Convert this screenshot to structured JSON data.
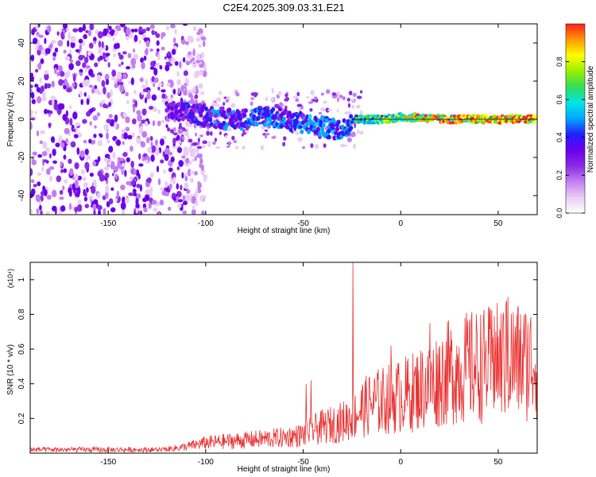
{
  "title": "C2E4.2025.309.03.31.E21",
  "colors": {
    "snr_line": "#e83030",
    "colormap": [
      "#ffffff",
      "#e9cdf6",
      "#c27ef0",
      "#8a2be2",
      "#6a00ee",
      "#2020ff",
      "#00a8ff",
      "#00e5e5",
      "#33dd55",
      "#99ee00",
      "#ffff00",
      "#ff9900",
      "#ff2020"
    ]
  },
  "chart_data": [
    {
      "type": "heatmap",
      "name": "spectrogram",
      "xlabel": "Height of straight line (km)",
      "ylabel": "Frequency (Hz)",
      "xlim": [
        -190,
        70
      ],
      "ylim": [
        -50,
        50
      ],
      "xticks": [
        -150,
        -100,
        -50,
        0,
        50
      ],
      "yticks": [
        -40,
        -20,
        0,
        20,
        40
      ],
      "xtick_labels": [
        "-150",
        "-100",
        "-50",
        "0",
        "50"
      ],
      "ytick_labels": [
        "-40",
        "-20",
        "0",
        "20",
        "40"
      ],
      "noise_region_km": [
        -190,
        -110
      ],
      "signal_track": [
        {
          "x": -120,
          "y": 4,
          "amp": 0.3
        },
        {
          "x": -110,
          "y": 3,
          "amp": 0.35
        },
        {
          "x": -100,
          "y": 2,
          "amp": 0.4
        },
        {
          "x": -90,
          "y": 0,
          "amp": 0.4
        },
        {
          "x": -80,
          "y": 0,
          "amp": 0.4
        },
        {
          "x": -70,
          "y": 2,
          "amp": 0.45
        },
        {
          "x": -60,
          "y": 0,
          "amp": 0.45
        },
        {
          "x": -50,
          "y": -2,
          "amp": 0.45
        },
        {
          "x": -40,
          "y": -4,
          "amp": 0.5
        },
        {
          "x": -30,
          "y": -6,
          "amp": 0.45
        },
        {
          "x": -25,
          "y": 0,
          "amp": 0.6
        },
        {
          "x": -10,
          "y": 0,
          "amp": 0.7
        },
        {
          "x": 0,
          "y": 1,
          "amp": 0.75
        },
        {
          "x": 10,
          "y": 1,
          "amp": 0.9
        },
        {
          "x": 20,
          "y": 0,
          "amp": 0.95
        },
        {
          "x": 40,
          "y": 0,
          "amp": 1.0
        },
        {
          "x": 60,
          "y": 0,
          "amp": 1.0
        },
        {
          "x": 70,
          "y": 0,
          "amp": 1.0
        }
      ]
    },
    {
      "type": "colorbar",
      "name": "colorbar",
      "label": "Normalized spectral amplitude",
      "range": [
        0,
        1
      ],
      "ticks": [
        0.0,
        0.2,
        0.4,
        0.6,
        0.8
      ],
      "tick_labels": [
        "0.0",
        "0.2",
        "0.4",
        "0.6",
        "0.8"
      ]
    },
    {
      "type": "line",
      "name": "snr",
      "xlabel": "Height of straight line (km)",
      "ylabel": "SNR (10 * v/v)",
      "yscale_label": "(x10⁴)",
      "xlim": [
        -190,
        70
      ],
      "ylim": [
        0,
        1.1
      ],
      "xticks": [
        -150,
        -100,
        -50,
        0,
        50
      ],
      "yticks": [
        0.2,
        0.4,
        0.6,
        0.8,
        1
      ],
      "xtick_labels": [
        "-150",
        "-100",
        "-50",
        "0",
        "50"
      ],
      "ytick_labels": [
        "0.2",
        "0.4",
        "0.6",
        "0.8",
        "1"
      ],
      "series": [
        {
          "name": "SNR",
          "envelope": {
            "x": [
              -190,
              -150,
              -120,
              -110,
              -100,
              -90,
              -80,
              -70,
              -60,
              -50,
              -45,
              -40,
              -35,
              -30,
              -25,
              -20,
              -15,
              -10,
              -5,
              0,
              5,
              10,
              15,
              20,
              25,
              30,
              35,
              40,
              45,
              50,
              55,
              60,
              65,
              70
            ],
            "y": [
              0.02,
              0.02,
              0.03,
              0.05,
              0.08,
              0.09,
              0.1,
              0.11,
              0.12,
              0.14,
              0.18,
              0.2,
              0.22,
              0.24,
              0.28,
              0.34,
              0.38,
              0.4,
              0.42,
              0.44,
              0.46,
              0.5,
              0.52,
              0.58,
              0.62,
              0.64,
              0.66,
              0.67,
              0.68,
              0.7,
              0.72,
              0.71,
              0.7,
              0.72
            ]
          },
          "peaks": [
            {
              "x": -24.5,
              "y": 1.1
            },
            {
              "x": -48.5,
              "y": 0.4
            },
            {
              "x": -46,
              "y": 0.42
            },
            {
              "x": -5,
              "y": 0.62
            },
            {
              "x": 54,
              "y": 0.86
            },
            {
              "x": 55,
              "y": 0.9
            },
            {
              "x": 48,
              "y": 0.79
            },
            {
              "x": 15,
              "y": 0.75
            }
          ]
        }
      ]
    }
  ]
}
